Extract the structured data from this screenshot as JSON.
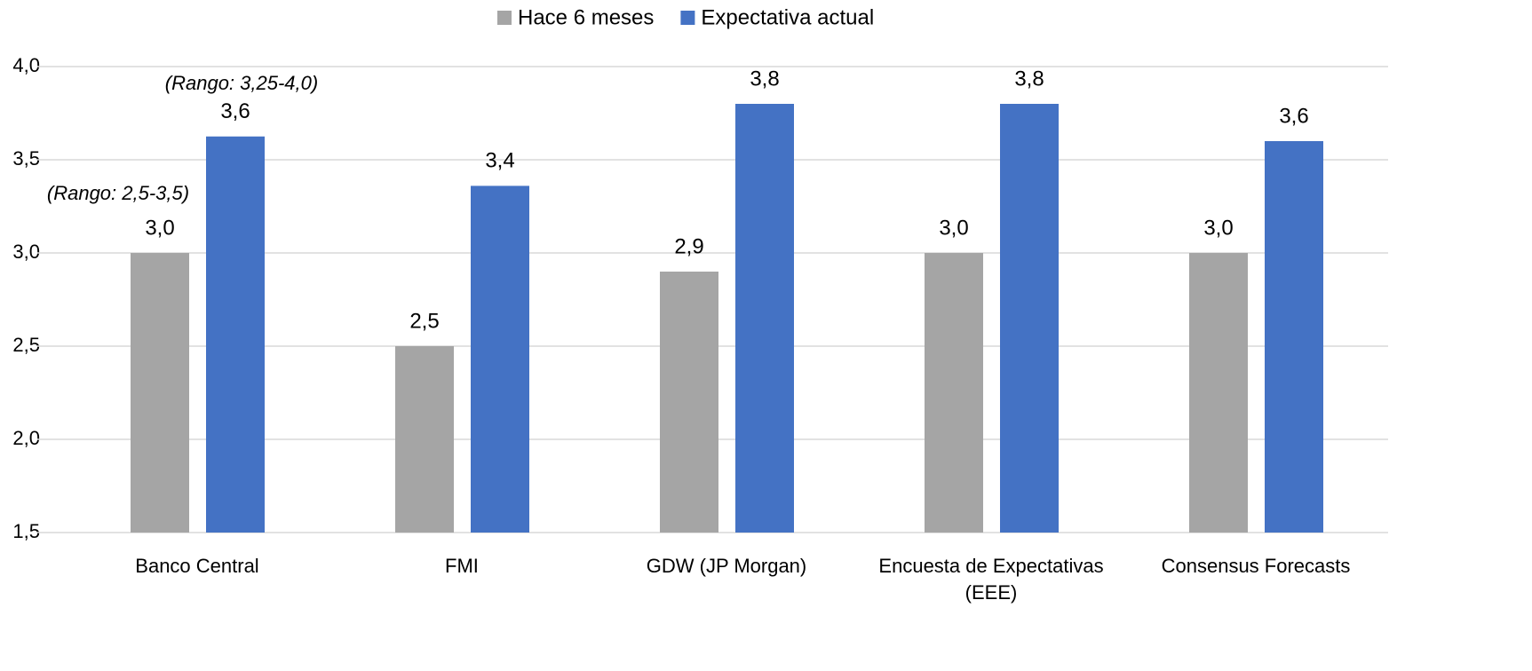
{
  "chart_data": {
    "type": "bar",
    "categories": [
      "Banco Central",
      "FMI",
      "GDW (JP Morgan)",
      "Encuesta de Expectativas (EEE)",
      "Consensus Forecasts"
    ],
    "series": [
      {
        "name": "Hace 6 meses",
        "color": "#a5a5a5",
        "values": [
          3.0,
          2.5,
          2.9,
          3.0,
          3.0
        ],
        "value_labels": [
          "3,0",
          "2,5",
          "2,9",
          "3,0",
          "3,0"
        ]
      },
      {
        "name": "Expectativa actual",
        "color": "#4472c4",
        "values": [
          3.625,
          3.36,
          3.8,
          3.8,
          3.6
        ],
        "value_labels": [
          "3,6",
          "3,4",
          "3,8",
          "3,8",
          "3,6"
        ]
      }
    ],
    "annotations": [
      "(Rango: 3,25-4,0)",
      "(Rango: 2,5-3,5)"
    ],
    "ylim": [
      1.5,
      4.0
    ],
    "yticks": [
      {
        "value": 1.5,
        "label": "1,5"
      },
      {
        "value": 2.0,
        "label": "2,0"
      },
      {
        "value": 2.5,
        "label": "2,5"
      },
      {
        "value": 3.0,
        "label": "3,0"
      },
      {
        "value": 3.5,
        "label": "3,5"
      },
      {
        "value": 4.0,
        "label": "4,0"
      }
    ],
    "grid": true,
    "legend": "top"
  }
}
